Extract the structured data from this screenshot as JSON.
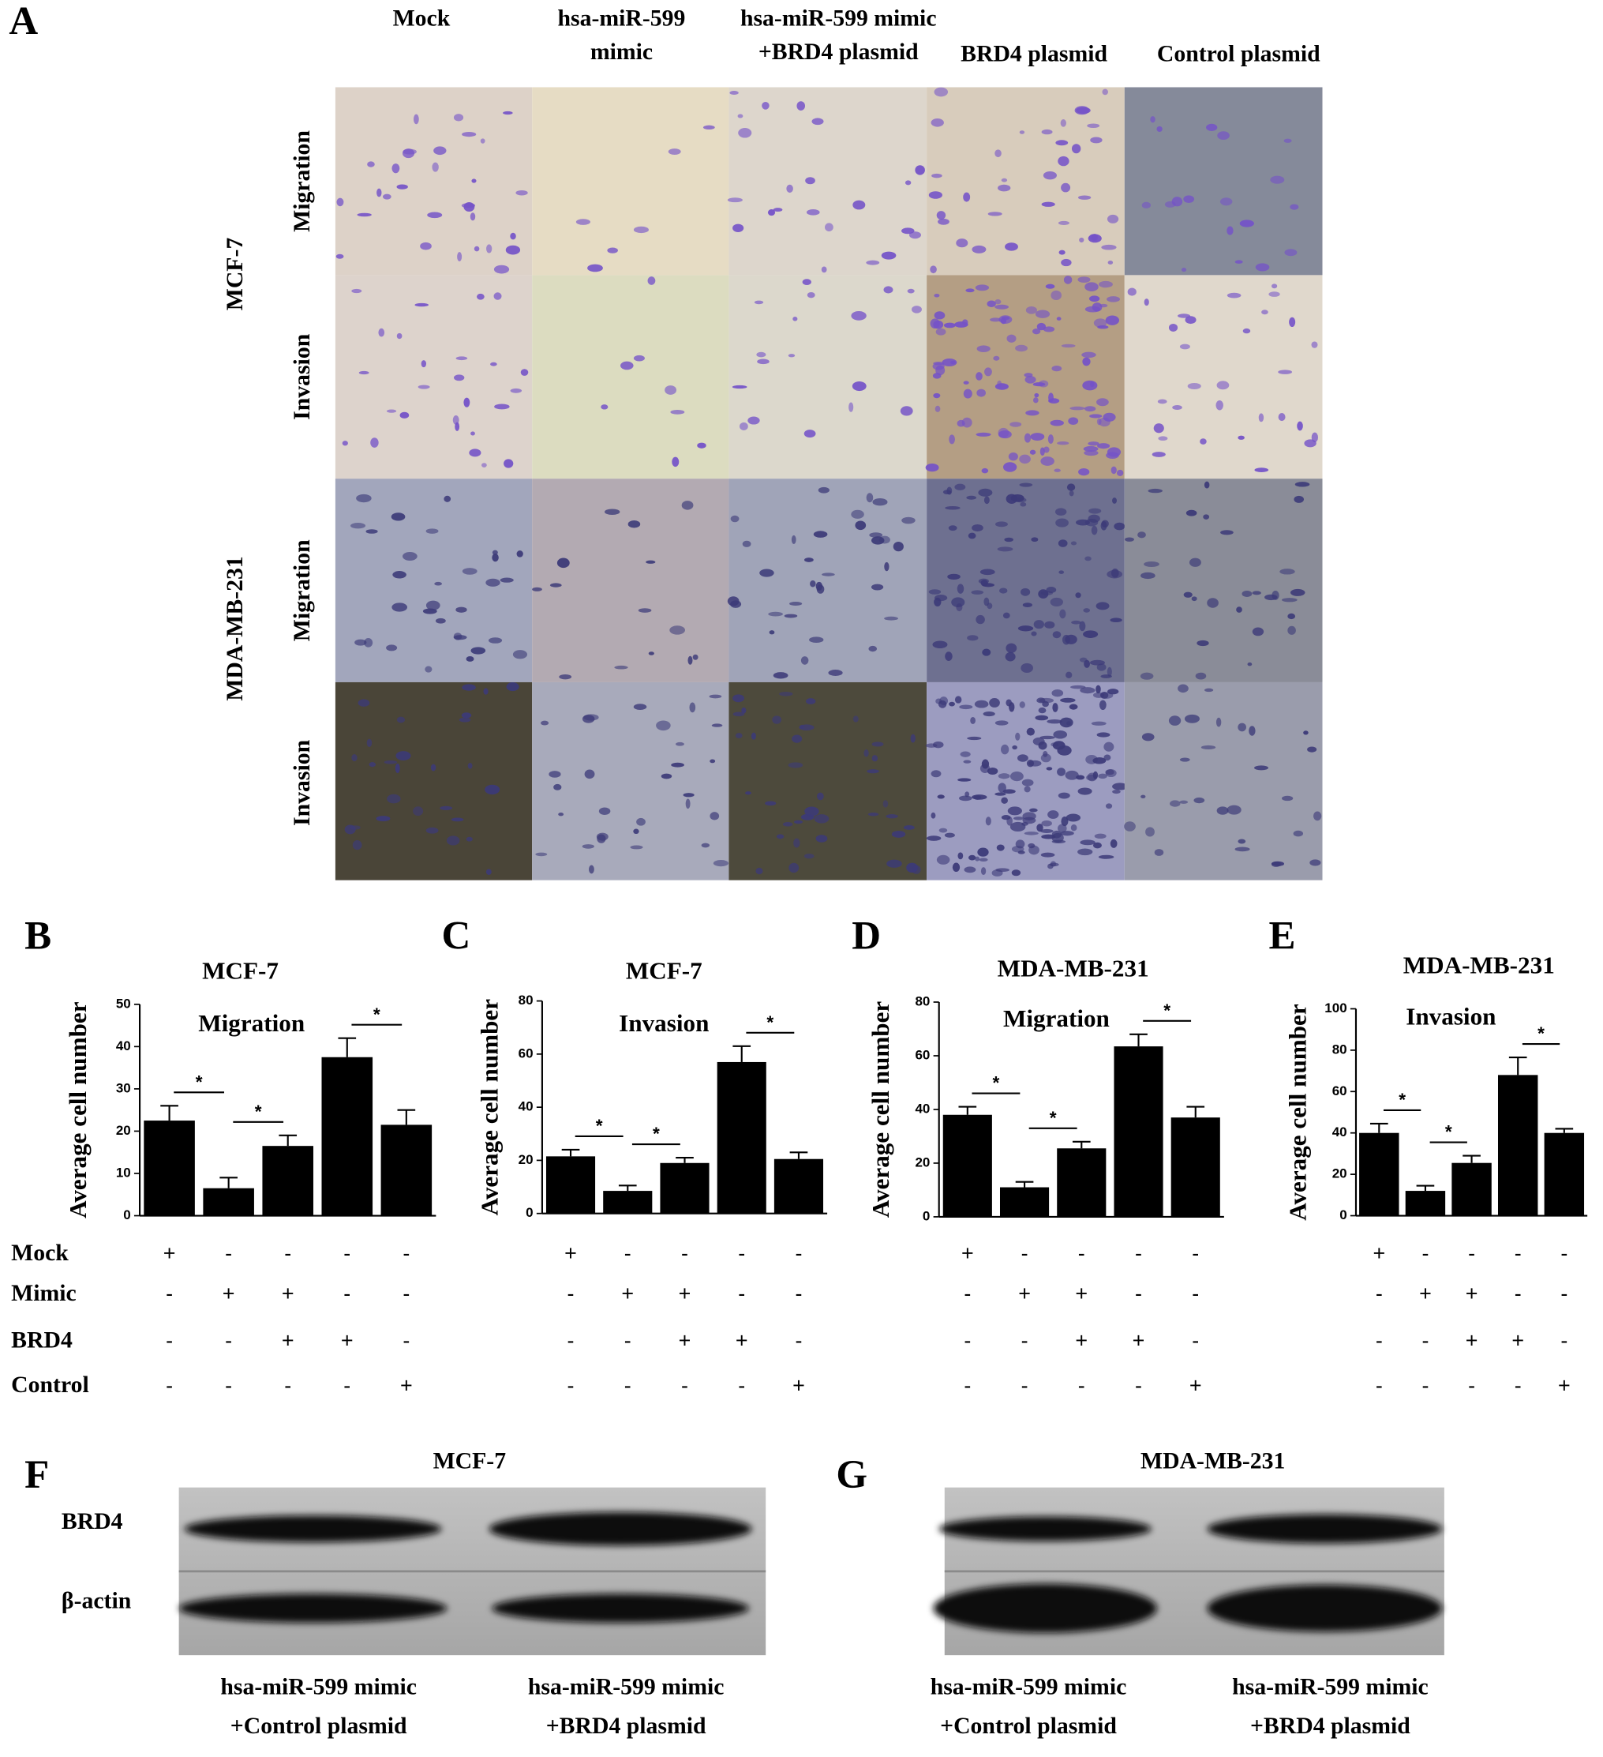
{
  "panel_a": {
    "label": "A",
    "columns": [
      [
        "Mock"
      ],
      [
        "hsa-miR-599",
        "mimic"
      ],
      [
        "hsa-miR-599 mimic",
        "+BRD4 plasmid"
      ],
      [
        "BRD4 plasmid"
      ],
      [
        "Control plasmid"
      ]
    ],
    "groups": [
      {
        "label": "MCF-7",
        "rows": [
          "Migration",
          "Invasion"
        ]
      },
      {
        "label": "MDA-MB-231",
        "rows": [
          "Migration",
          "Invasion"
        ]
      }
    ]
  },
  "treatment_labels": [
    "Mock",
    "Mimic",
    "BRD4",
    "Control"
  ],
  "chart_data": [
    {
      "type": "bar",
      "panel": "B",
      "title": "MCF-7",
      "subtitle": "Migration",
      "ylabel": "Average cell number",
      "categories": [
        null,
        null,
        null,
        null,
        null
      ],
      "values": [
        22.5,
        6.5,
        16.5,
        37.5,
        21.5
      ],
      "errors": [
        3.5,
        2.5,
        2.5,
        4.5,
        3.5
      ],
      "color": "#000000",
      "ylim": [
        0,
        50
      ],
      "yticks": [
        0,
        10,
        20,
        30,
        40,
        50
      ],
      "annotations": [
        "*",
        "*",
        "*"
      ],
      "treatments": [
        [
          "+",
          "-",
          "-",
          "-",
          "-"
        ],
        [
          "-",
          "+",
          "+",
          "-",
          "-"
        ],
        [
          "-",
          "-",
          "+",
          "+",
          "-"
        ],
        [
          "-",
          "-",
          "-",
          "-",
          "+"
        ]
      ]
    },
    {
      "type": "bar",
      "panel": "C",
      "title": "MCF-7",
      "subtitle": "Invasion",
      "ylabel": "Average cell number",
      "categories": [
        null,
        null,
        null,
        null,
        null
      ],
      "values": [
        21.5,
        8.5,
        19,
        57,
        20.5
      ],
      "errors": [
        2.5,
        2,
        2,
        6,
        2.5
      ],
      "color": "#000000",
      "ylim": [
        0,
        80
      ],
      "yticks": [
        0,
        20,
        40,
        60,
        80
      ],
      "annotations": [
        "*",
        "*",
        "*"
      ],
      "treatments": [
        [
          "+",
          "-",
          "-",
          "-",
          "-"
        ],
        [
          "-",
          "+",
          "+",
          "-",
          "-"
        ],
        [
          "-",
          "-",
          "+",
          "+",
          "-"
        ],
        [
          "-",
          "-",
          "-",
          "-",
          "+"
        ]
      ]
    },
    {
      "type": "bar",
      "panel": "D",
      "title": "MDA-MB-231",
      "subtitle": "Migration",
      "ylabel": "Average cell number",
      "categories": [
        null,
        null,
        null,
        null,
        null
      ],
      "values": [
        38,
        11,
        25.5,
        63.5,
        37
      ],
      "errors": [
        3,
        2,
        2.5,
        4.5,
        4
      ],
      "color": "#000000",
      "ylim": [
        0,
        80
      ],
      "yticks": [
        0,
        20,
        40,
        60,
        80
      ],
      "annotations": [
        "*",
        "*",
        "*"
      ],
      "treatments": [
        [
          "+",
          "-",
          "-",
          "-",
          "-"
        ],
        [
          "-",
          "+",
          "+",
          "-",
          "-"
        ],
        [
          "-",
          "-",
          "+",
          "+",
          "-"
        ],
        [
          "-",
          "-",
          "-",
          "-",
          "+"
        ]
      ]
    },
    {
      "type": "bar",
      "panel": "E",
      "title": "MDA-MB-231",
      "subtitle": "Invasion",
      "ylabel": "Average cell number",
      "categories": [
        null,
        null,
        null,
        null,
        null
      ],
      "values": [
        40,
        12,
        25.5,
        68,
        40
      ],
      "errors": [
        4.5,
        2.5,
        3.5,
        8.5,
        2
      ],
      "color": "#000000",
      "ylim": [
        0,
        100
      ],
      "yticks": [
        0,
        20,
        40,
        60,
        80,
        100
      ],
      "annotations": [
        "*",
        "*",
        "*"
      ],
      "treatments": [
        [
          "+",
          "-",
          "-",
          "-",
          "-"
        ],
        [
          "-",
          "+",
          "+",
          "-",
          "-"
        ],
        [
          "-",
          "-",
          "+",
          "+",
          "-"
        ],
        [
          "-",
          "-",
          "-",
          "-",
          "+"
        ]
      ]
    }
  ],
  "blots": [
    {
      "panel": "F",
      "title": "MCF-7",
      "rows": [
        "BRD4",
        "β-actin"
      ],
      "lanes": [
        [
          "hsa-miR-599 mimic",
          "+Control plasmid"
        ],
        [
          "hsa-miR-599 mimic",
          "+BRD4 plasmid"
        ]
      ]
    },
    {
      "panel": "G",
      "title": "MDA-MB-231",
      "lanes": [
        [
          "hsa-miR-599 mimic",
          "+Control plasmid"
        ],
        [
          "hsa-miR-599 mimic",
          "+BRD4 plasmid"
        ]
      ]
    }
  ]
}
